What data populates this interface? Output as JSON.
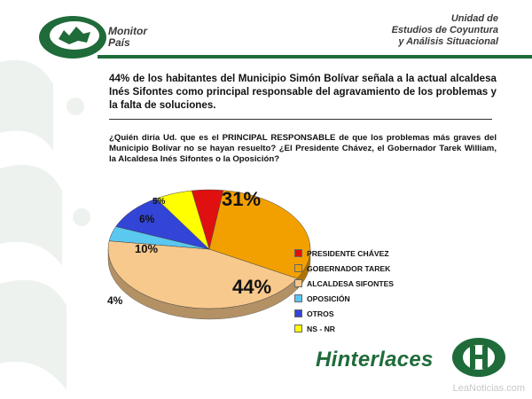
{
  "header": {
    "logo_line1": "Monitor",
    "logo_line2": "País",
    "org_line1": "Unidad de",
    "org_line2": "Estudios de Coyuntura",
    "org_line3": "y Análisis Situacional"
  },
  "headline": "44% de los habitantes del Municipio Simón Bolívar señala a la actual alcaldesa Inés Sifontes como principal responsable del agravamiento de los problemas y la falta de soluciones.",
  "question": "¿Quién diría Ud. que es el PRINCIPAL RESPONSABLE de que los problemas más graves del Municipio Bolívar no se hayan resuelto? ¿El Presidente Chávez, el Gobernador Tarek William, la Alcaldesa Inés Sifontes o la Oposición?",
  "chart_data": {
    "type": "pie",
    "title": "",
    "slices": [
      {
        "label": "PRESIDENTE CHÁVEZ",
        "value": 5,
        "display": "5%",
        "color": "#e01010"
      },
      {
        "label": "GOBERNADOR TAREK",
        "value": 31,
        "display": "31%",
        "color": "#f2a000"
      },
      {
        "label": "ALCALDESA SIFONTES",
        "value": 44,
        "display": "44%",
        "color": "#f8c98c"
      },
      {
        "label": "OPOSICIÓN",
        "value": 4,
        "display": "4%",
        "color": "#5bc8f0"
      },
      {
        "label": "OTROS",
        "value": 10,
        "display": "10%",
        "color": "#3345d6"
      },
      {
        "label": "NS - NR",
        "value": 6,
        "display": "6%",
        "color": "#ffff00"
      }
    ],
    "legend_position": "right",
    "three_d": true
  },
  "footer": {
    "brand": "Hinterlaces",
    "website": "LeaNoticias.com"
  },
  "colors": {
    "brand_green": "#1f6b3a",
    "text": "#111111"
  }
}
